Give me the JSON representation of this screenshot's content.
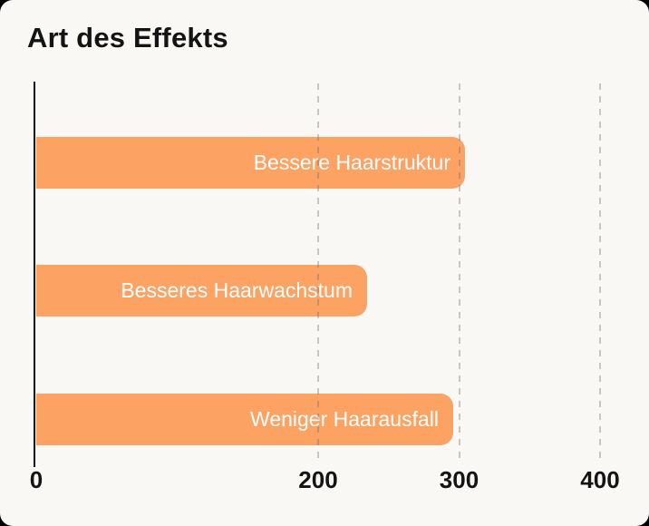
{
  "page": {
    "background_color": "#FAF8F5",
    "outside_color": "#000000"
  },
  "chart_data": {
    "type": "bar",
    "orientation": "horizontal",
    "title": "Art des Effekts",
    "categories": [
      "Bessere Haarstruktur",
      "Besseres Haarwachstum",
      "Weniger Haarausfall"
    ],
    "values": [
      304,
      235,
      296
    ],
    "xlabel": "",
    "ylabel": "",
    "xlim": [
      0,
      426
    ],
    "x_tick_values": [
      0,
      200,
      300,
      400
    ],
    "x_tick_labels": [
      "0",
      "200",
      "300",
      "400"
    ],
    "gridline_values": [
      200,
      300,
      400
    ],
    "grid": "vertical-dashed",
    "legend": false,
    "bar_labels_position": "inside-end",
    "bar_color": "#FCA263",
    "bar_label_color": "#FFFFFF",
    "axis_line_color": "#0C0C0C",
    "tick_label_color": "#141414",
    "gridline_color": "rgba(110,105,100,0.35)"
  }
}
